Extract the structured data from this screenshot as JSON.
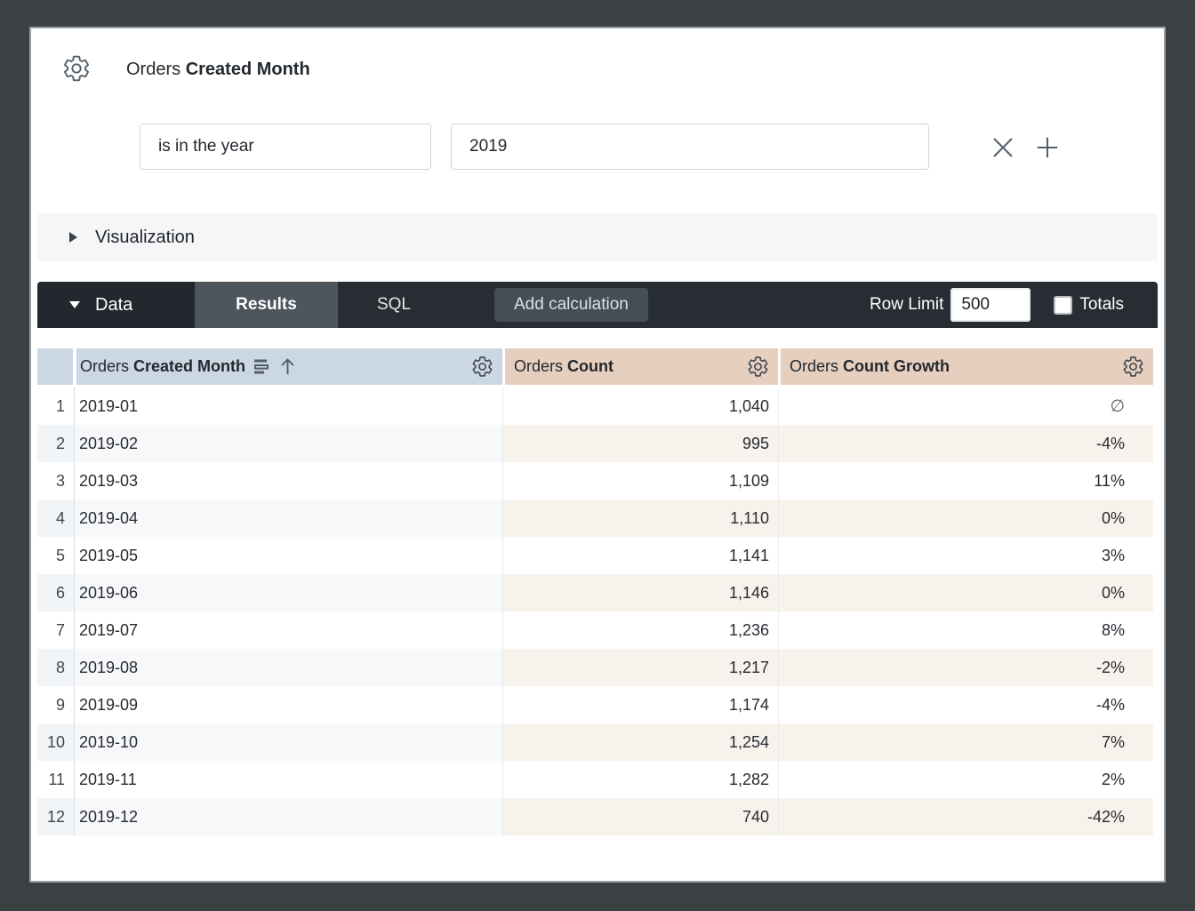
{
  "header": {
    "field_label_prefix": "Orders",
    "field_label": "Created Month"
  },
  "filter": {
    "condition": "is in the year",
    "value": "2019"
  },
  "visualization": {
    "label": "Visualization"
  },
  "data_bar": {
    "label": "Data",
    "tabs": [
      {
        "label": "Results",
        "active": true
      },
      {
        "label": "SQL",
        "active": false
      }
    ],
    "add_calculation_label": "Add calculation",
    "row_limit_label": "Row Limit",
    "row_limit_value": "500",
    "totals_label": "Totals",
    "totals_checked": false
  },
  "table": {
    "columns": [
      {
        "prefix": "Orders",
        "label": "Created Month",
        "type": "dimension",
        "sort": "ascending"
      },
      {
        "prefix": "Orders",
        "label": "Count",
        "type": "measure"
      },
      {
        "prefix": "Orders",
        "label": "Count Growth",
        "type": "measure"
      }
    ],
    "rows": [
      {
        "n": "1",
        "month": "2019-01",
        "count": "1,040",
        "growth": "∅"
      },
      {
        "n": "2",
        "month": "2019-02",
        "count": "995",
        "growth": "-4%"
      },
      {
        "n": "3",
        "month": "2019-03",
        "count": "1,109",
        "growth": "11%"
      },
      {
        "n": "4",
        "month": "2019-04",
        "count": "1,110",
        "growth": "0%"
      },
      {
        "n": "5",
        "month": "2019-05",
        "count": "1,141",
        "growth": "3%"
      },
      {
        "n": "6",
        "month": "2019-06",
        "count": "1,146",
        "growth": "0%"
      },
      {
        "n": "7",
        "month": "2019-07",
        "count": "1,236",
        "growth": "8%"
      },
      {
        "n": "8",
        "month": "2019-08",
        "count": "1,217",
        "growth": "-2%"
      },
      {
        "n": "9",
        "month": "2019-09",
        "count": "1,174",
        "growth": "-4%"
      },
      {
        "n": "10",
        "month": "2019-10",
        "count": "1,254",
        "growth": "7%"
      },
      {
        "n": "11",
        "month": "2019-11",
        "count": "1,282",
        "growth": "2%"
      },
      {
        "n": "12",
        "month": "2019-12",
        "count": "740",
        "growth": "-42%"
      }
    ]
  },
  "colors": {
    "frame_bg": "#3b4043",
    "card_border": "#9aa0a6",
    "viz_bar_bg": "#f5f6f8",
    "data_bar_bg": "#272d33",
    "data_toggle_bg": "#22282d",
    "active_tab_bg": "#4d555d",
    "add_calc_bg": "#454d55",
    "dimension_header_bg": "#cbd7e3",
    "measure_header_bg": "#e7cfc0",
    "rownum_stripe": "#f2f5f8",
    "dimension_stripe": "#f7f8fa",
    "measure_stripe": "#f8f2ed"
  }
}
